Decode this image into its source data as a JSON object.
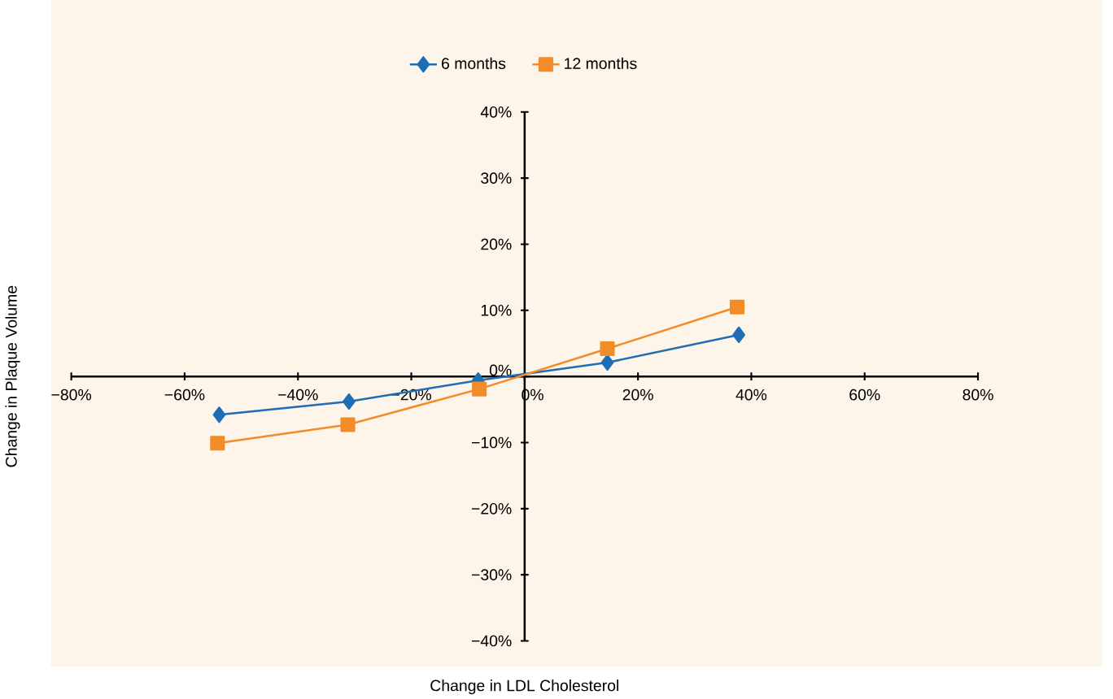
{
  "chart_data": {
    "type": "line",
    "xlabel": "Change in LDL Cholesterol",
    "ylabel": "Change in Plaque Volume",
    "xlim": [
      -80,
      80
    ],
    "ylim": [
      -40,
      40
    ],
    "xticks": [
      {
        "value": -80,
        "label": "−80%"
      },
      {
        "value": -60,
        "label": "−60%"
      },
      {
        "value": -40,
        "label": "−40%"
      },
      {
        "value": -20,
        "label": "−20%"
      },
      {
        "value": 0,
        "label": "0%"
      },
      {
        "value": 20,
        "label": "20%"
      },
      {
        "value": 40,
        "label": "40%"
      },
      {
        "value": 60,
        "label": "60%"
      },
      {
        "value": 80,
        "label": "80%"
      }
    ],
    "yticks": [
      {
        "value": -40,
        "label": "−40%"
      },
      {
        "value": -30,
        "label": "−30%"
      },
      {
        "value": -20,
        "label": "−20%"
      },
      {
        "value": -10,
        "label": "−10%"
      },
      {
        "value": 0,
        "label": "0%"
      },
      {
        "value": 10,
        "label": "10%"
      },
      {
        "value": 20,
        "label": "20%"
      },
      {
        "value": 30,
        "label": "30%"
      },
      {
        "value": 40,
        "label": "40%"
      }
    ],
    "legend": "top",
    "grid": false,
    "series": [
      {
        "name": "6 months",
        "color": "#1f6db5",
        "marker": "diamond",
        "x": [
          -53.9,
          -31.0,
          -8.2,
          14.6,
          37.8
        ],
        "values": [
          -5.8,
          -3.8,
          -0.6,
          2.1,
          6.3
        ]
      },
      {
        "name": "12 months",
        "color": "#f28c28",
        "marker": "square",
        "x": [
          -54.2,
          -31.2,
          -8.0,
          14.6,
          37.5
        ],
        "values": [
          -10.1,
          -7.3,
          -1.9,
          4.2,
          10.5
        ]
      }
    ]
  }
}
